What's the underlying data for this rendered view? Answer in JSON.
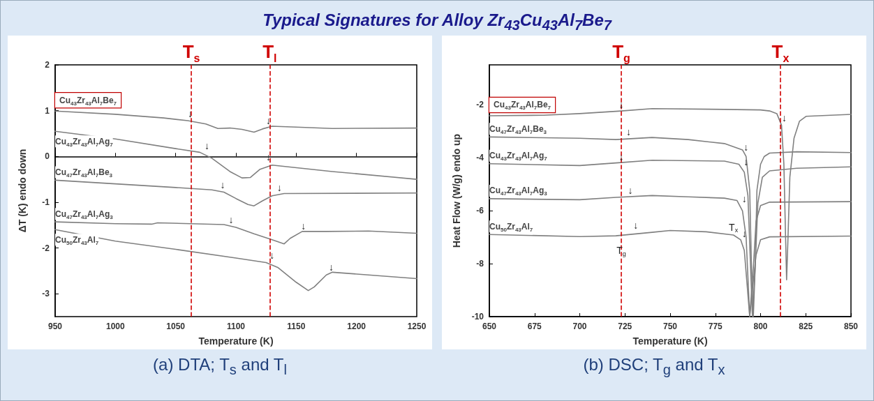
{
  "chart_data": [
    {
      "type": "line",
      "title": "Typical Signatures for Alloy  Zr$_{43}$Cu$_{43}$Al$_{7}$Be$_{7}$",
      "xlabel": "Temperature (K)",
      "ylabel": "ΔT (K) endo down",
      "xlim": [
        950,
        1250
      ],
      "xticks": [
        950,
        1000,
        1050,
        1100,
        1150,
        1200,
        1250
      ],
      "ylim": [
        -3.5,
        2
      ],
      "yticks": [
        -3,
        -2,
        -1,
        0,
        1,
        2
      ],
      "marker": "none",
      "line_style": "solid",
      "series": [
        {
          "name": "Cu$_{43}$Zr$_{43}$Al$_{7}$Be$_{7}$",
          "color": "#808080",
          "x": [
            950,
            1000,
            1040,
            1060,
            1075,
            1085,
            1095,
            1105,
            1115,
            1122,
            1130,
            1150,
            1180,
            1250
          ],
          "values": [
            0.99,
            0.92,
            0.84,
            0.78,
            0.71,
            0.61,
            0.62,
            0.59,
            0.53,
            0.6,
            0.66,
            0.64,
            0.61,
            0.62
          ]
        },
        {
          "name": "Cu$_{43}$Zr$_{43}$Al$_{7}$Ag$_{7}$",
          "color": "#808080",
          "x": [
            950,
            1000,
            1050,
            1070,
            1080,
            1095,
            1105,
            1112,
            1120,
            1130,
            1180,
            1250
          ],
          "values": [
            0.55,
            0.38,
            0.17,
            0.09,
            -0.04,
            -0.33,
            -0.47,
            -0.46,
            -0.28,
            -0.19,
            -0.33,
            -0.5
          ]
        },
        {
          "name": "Cu$_{47}$Zr$_{43}$Al$_{7}$Be$_{3}$",
          "color": "#808080",
          "x": [
            950,
            1000,
            1050,
            1080,
            1090,
            1100,
            1110,
            1115,
            1122,
            1130,
            1140,
            1250
          ],
          "values": [
            -0.52,
            -0.6,
            -0.68,
            -0.73,
            -0.78,
            -0.92,
            -1.05,
            -1.08,
            -0.97,
            -0.86,
            -0.81,
            -0.8
          ]
        },
        {
          "name": "Cu$_{47}$Zr$_{43}$Al$_{7}$Ag$_{3}$",
          "color": "#808080",
          "x": [
            950,
            1000,
            1030,
            1035,
            1090,
            1100,
            1115,
            1130,
            1140,
            1145,
            1155,
            1175,
            1210,
            1250
          ],
          "values": [
            -1.43,
            -1.47,
            -1.48,
            -1.45,
            -1.49,
            -1.55,
            -1.69,
            -1.82,
            -1.91,
            -1.79,
            -1.64,
            -1.64,
            -1.63,
            -1.68
          ]
        },
        {
          "name": "Cu$_{50}$Zr$_{43}$Al$_{7}$",
          "color": "#808080",
          "x": [
            950,
            1000,
            1050,
            1100,
            1125,
            1135,
            1150,
            1160,
            1165,
            1175,
            1180,
            1250
          ],
          "values": [
            -1.6,
            -1.85,
            -2.03,
            -2.22,
            -2.32,
            -2.43,
            -2.75,
            -2.93,
            -2.85,
            -2.59,
            -2.53,
            -2.67
          ]
        }
      ],
      "ref_lines": [
        {
          "axis": "x",
          "value": 1063,
          "label": "T$_{s}$",
          "color": "#d00000",
          "line_style": "dashed"
        },
        {
          "axis": "x",
          "value": 1128,
          "label": "T$_{l}$",
          "color": "#d00000",
          "line_style": "dashed"
        }
      ],
      "annotations": [
        "(a) DTA; T$_{s}$ and T$_{l}$",
        {
          "text": "↓",
          "x": 1062,
          "y": 0.8
        },
        {
          "text": "↓",
          "x": 1127,
          "y": 0.65
        },
        {
          "text": "↓",
          "x": 1076,
          "y": 0.1
        },
        {
          "text": "↓",
          "x": 1127,
          "y": -0.15
        },
        {
          "text": "↓",
          "x": 1089,
          "y": -0.75
        },
        {
          "text": "↓",
          "x": 1136,
          "y": -0.82
        },
        {
          "text": "↓",
          "x": 1096,
          "y": -1.52
        },
        {
          "text": "↓",
          "x": 1156,
          "y": -1.65
        },
        {
          "text": "↓",
          "x": 1130,
          "y": -2.3
        },
        {
          "text": "↓",
          "x": 1179,
          "y": -2.55
        }
      ]
    },
    {
      "type": "line",
      "xlabel": "Temperature (K)",
      "ylabel": "Heat Flow (W/g) endo up",
      "xlim": [
        650,
        850
      ],
      "xticks": [
        650,
        675,
        700,
        725,
        750,
        775,
        800,
        825,
        850
      ],
      "ylim": [
        -10,
        -0.5
      ],
      "yticks": [
        -10,
        -8,
        -6,
        -4,
        -2
      ],
      "marker": "none",
      "line_style": "solid",
      "series": [
        {
          "name": "Cu$_{43}$Zr$_{43}$Al$_{7}$Be$_{7}$",
          "color": "#808080",
          "x": [
            650,
            680,
            700,
            723,
            740,
            780,
            800,
            805,
            809,
            811.6,
            812.9,
            813.9,
            814.4,
            815.1,
            816.2,
            818.5,
            821.5,
            825.3,
            850
          ],
          "values": [
            -2.42,
            -2.4,
            -2.34,
            -2.24,
            -2.15,
            -2.18,
            -2.2,
            -2.24,
            -2.34,
            -2.78,
            -4.25,
            -7.19,
            -8.61,
            -7.19,
            -4.74,
            -3.27,
            -2.63,
            -2.44,
            -2.37
          ]
        },
        {
          "name": "Cu$_{47}$Zr$_{43}$Al$_{7}$Be$_{3}$",
          "color": "#808080",
          "x": [
            650,
            700,
            720,
            740,
            760,
            780,
            790,
            792,
            794,
            795,
            796,
            797,
            798,
            800,
            802,
            805,
            820,
            850
          ],
          "values": [
            -3.22,
            -3.27,
            -3.32,
            -3.24,
            -3.32,
            -3.47,
            -3.71,
            -3.96,
            -5.23,
            -8.17,
            -10,
            -8.17,
            -5.23,
            -4.25,
            -3.96,
            -3.83,
            -3.78,
            -3.81
          ]
        },
        {
          "name": "Cu$_{43}$Zr$_{43}$Al$_{7}$Ag$_{7}$",
          "color": "#808080",
          "x": [
            650,
            700,
            720,
            740,
            780,
            788,
            791,
            793,
            794.5,
            795.5,
            797,
            798.5,
            801,
            805,
            820,
            850
          ],
          "values": [
            -4.23,
            -4.3,
            -4.2,
            -4.1,
            -4.13,
            -4.25,
            -4.55,
            -5.43,
            -8.17,
            -10,
            -8.17,
            -5.72,
            -4.74,
            -4.5,
            -4.4,
            -4.35
          ]
        },
        {
          "name": "Cu$_{47}$Zr$_{43}$Al$_{7}$Ag$_{3}$",
          "color": "#808080",
          "x": [
            650,
            700,
            720,
            740,
            760,
            780,
            787,
            790,
            792,
            794,
            796,
            797.5,
            800,
            805,
            850
          ],
          "values": [
            -5.55,
            -5.59,
            -5.5,
            -5.43,
            -5.48,
            -5.53,
            -5.62,
            -6.01,
            -6.99,
            -10,
            -8.17,
            -6.4,
            -5.81,
            -5.68,
            -5.66
          ]
        },
        {
          "name": "Cu$_{50}$Zr$_{43}$Al$_{7}$",
          "color": "#808080",
          "x": [
            650,
            700,
            720,
            740,
            750,
            770,
            785,
            789,
            791,
            793,
            794,
            796,
            797.5,
            800,
            805,
            850
          ],
          "values": [
            -6.9,
            -6.98,
            -6.95,
            -6.82,
            -6.75,
            -6.8,
            -6.92,
            -7.1,
            -7.5,
            -9.16,
            -10,
            -8.66,
            -7.68,
            -7.1,
            -6.99,
            -6.96
          ]
        }
      ],
      "ref_lines": [
        {
          "axis": "x",
          "value": 723,
          "label": "T$_{g}$",
          "color": "#d00000",
          "line_style": "dashed"
        },
        {
          "axis": "x",
          "value": 811,
          "label": "T$_{x}$",
          "color": "#d00000",
          "line_style": "dashed"
        }
      ],
      "annotations": [
        "(b) DSC; T$_{g}$ and T$_{x}$",
        {
          "text": "T$_{g}$",
          "x": 723,
          "y": -7.8
        },
        {
          "text": "T$_{x}$",
          "x": 785,
          "y": -6.92
        },
        {
          "text": "↓",
          "x": 723,
          "y": -2.24
        },
        {
          "text": "↓",
          "x": 811,
          "y": -2.5
        },
        {
          "text": "↓",
          "x": 727,
          "y": -3.27
        },
        {
          "text": "↓",
          "x": 792,
          "y": -3.85
        },
        {
          "text": "↓",
          "x": 723,
          "y": -4.2
        },
        {
          "text": "↓",
          "x": 792,
          "y": -4.4
        },
        {
          "text": "↓",
          "x": 728,
          "y": -5.48
        },
        {
          "text": "↓",
          "x": 791,
          "y": -5.8
        },
        {
          "text": "↓",
          "x": 731,
          "y": -6.8
        },
        {
          "text": "↓",
          "x": 791,
          "y": -7.1
        }
      ]
    }
  ]
}
